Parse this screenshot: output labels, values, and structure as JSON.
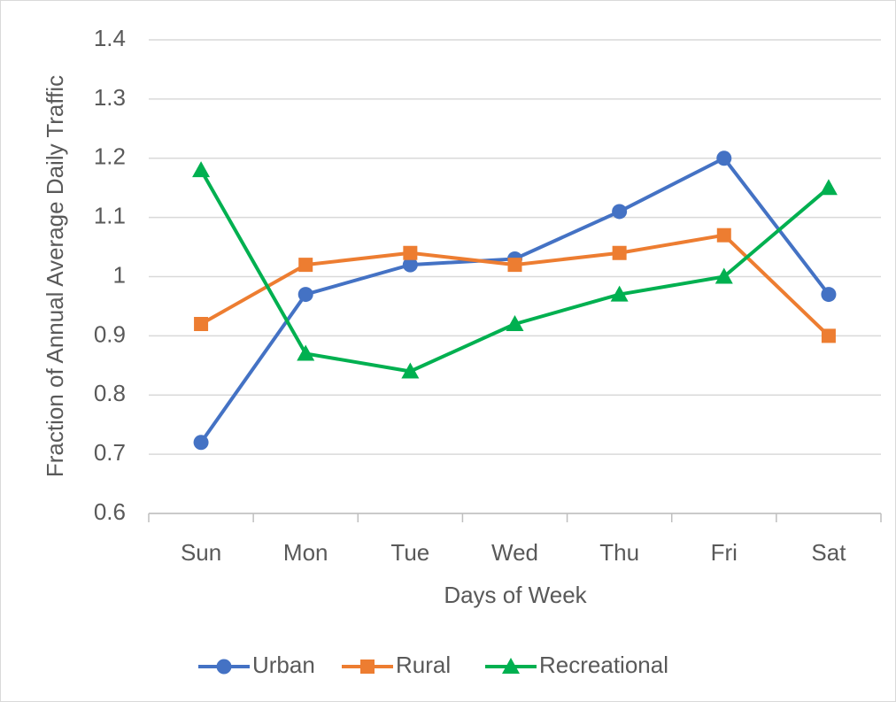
{
  "chart_data": {
    "type": "line",
    "x_label": "Days of Week",
    "y_label": "Fraction of Annual Average Daily Traffic",
    "categories": [
      "Sun",
      "Mon",
      "Tue",
      "Wed",
      "Thu",
      "Fri",
      "Sat"
    ],
    "series": [
      {
        "name": "Urban",
        "color": "#4472c4",
        "marker": "circle",
        "values": [
          0.72,
          0.97,
          1.02,
          1.03,
          1.11,
          1.2,
          0.97
        ]
      },
      {
        "name": "Rural",
        "color": "#ed7d31",
        "marker": "square",
        "values": [
          0.92,
          1.02,
          1.04,
          1.02,
          1.04,
          1.07,
          0.9
        ]
      },
      {
        "name": "Recreational",
        "color": "#00b050",
        "marker": "triangle",
        "values": [
          1.18,
          0.87,
          0.84,
          0.92,
          0.97,
          1.0,
          1.15
        ]
      }
    ],
    "ylim": [
      0.6,
      1.4
    ],
    "yticks": [
      0.6,
      0.7,
      0.8,
      0.9,
      1,
      1.1,
      1.2,
      1.3,
      1.4
    ],
    "grid": true,
    "legend": "bottom"
  }
}
